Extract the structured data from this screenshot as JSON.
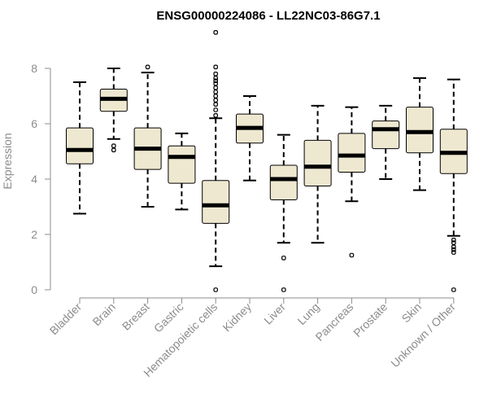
{
  "chart_data": {
    "type": "boxplot",
    "title": "ENSG00000224086 - LL22NC03-86G7.1",
    "xlabel": "",
    "ylabel": "Expression",
    "ylim": [
      0,
      9.3
    ],
    "yticks": [
      0,
      2,
      4,
      6,
      8
    ],
    "colors": {
      "box_fill": "#efe8d1",
      "box_stroke": "#000000",
      "axis": "#8c8c8c"
    },
    "categories": [
      "Bladder",
      "Brain",
      "Breast",
      "Gastric",
      "Hematopoietic cells",
      "Kidney",
      "Liver",
      "Lung",
      "Pancreas",
      "Prostate",
      "Skin",
      "Unknown / Other"
    ],
    "boxes": [
      {
        "low": 2.75,
        "q1": 4.55,
        "median": 5.05,
        "q3": 5.85,
        "high": 7.5,
        "outliers": []
      },
      {
        "low": 5.45,
        "q1": 6.45,
        "median": 6.9,
        "q3": 7.25,
        "high": 8.0,
        "outliers": [
          5.2,
          5.05
        ]
      },
      {
        "low": 3.0,
        "q1": 4.35,
        "median": 5.1,
        "q3": 5.85,
        "high": 7.85,
        "outliers": [
          8.05
        ]
      },
      {
        "low": 2.9,
        "q1": 3.85,
        "median": 4.8,
        "q3": 5.2,
        "high": 5.65,
        "outliers": []
      },
      {
        "low": 0.85,
        "q1": 2.4,
        "median": 3.05,
        "q3": 3.95,
        "high": 6.2,
        "outliers": [
          0.0,
          6.3,
          6.5,
          6.7,
          6.85,
          7.0,
          7.15,
          7.3,
          7.45,
          7.55,
          7.65,
          7.8,
          8.05,
          9.3
        ]
      },
      {
        "low": 3.95,
        "q1": 5.3,
        "median": 5.85,
        "q3": 6.35,
        "high": 7.0,
        "outliers": []
      },
      {
        "low": 1.7,
        "q1": 3.25,
        "median": 4.0,
        "q3": 4.5,
        "high": 5.6,
        "outliers": [
          1.15,
          0.0
        ]
      },
      {
        "low": 1.7,
        "q1": 3.75,
        "median": 4.45,
        "q3": 5.4,
        "high": 6.65,
        "outliers": []
      },
      {
        "low": 3.2,
        "q1": 4.25,
        "median": 4.85,
        "q3": 5.65,
        "high": 6.6,
        "outliers": [
          1.25
        ]
      },
      {
        "low": 4.0,
        "q1": 5.1,
        "median": 5.8,
        "q3": 6.1,
        "high": 6.65,
        "outliers": []
      },
      {
        "low": 3.6,
        "q1": 4.95,
        "median": 5.7,
        "q3": 6.6,
        "high": 7.65,
        "outliers": []
      },
      {
        "low": 1.95,
        "q1": 4.2,
        "median": 4.95,
        "q3": 5.8,
        "high": 7.6,
        "outliers": [
          1.8,
          1.7,
          1.55,
          1.45,
          1.35,
          0.0
        ]
      }
    ]
  }
}
